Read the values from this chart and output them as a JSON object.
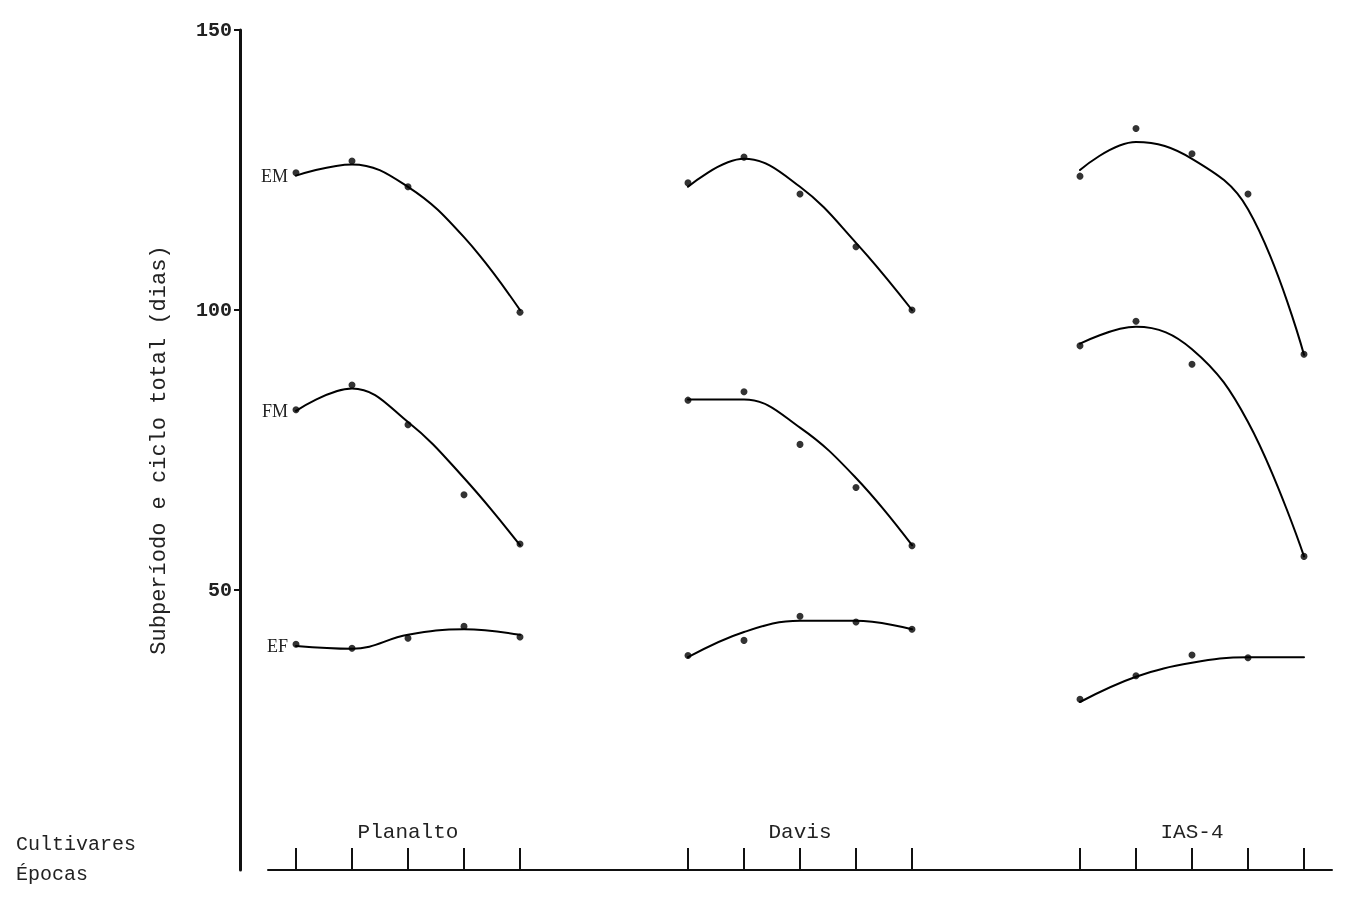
{
  "chart_data": {
    "type": "scatter",
    "ylabel": "Subperíodo e ciclo total (dias)",
    "annotations": [
      "Planalto",
      "Davis",
      "IAS-4",
      "Cultivares",
      "Épocas"
    ],
    "categories": [
      null,
      null,
      null,
      null,
      null,
      null,
      null,
      null,
      null,
      null,
      null,
      null,
      null,
      null,
      null,
      null,
      null,
      null,
      null
    ],
    "ylim": [
      0,
      150
    ],
    "yticks": [
      50,
      100,
      150
    ],
    "tick_labels": "y",
    "line_style": "solid",
    "series": [
      {
        "marker": "circle",
        "color": "#000000",
        "values": [
          124.5,
          126.6,
          122,
          null,
          99.6,
          null,
          null,
          122.7,
          127.3,
          120.7,
          111.3,
          100,
          null,
          null,
          123.9,
          132.4,
          127.9,
          120.7,
          92.1
        ]
      },
      {
        "marker": "circle",
        "color": "#000000",
        "values": [
          82.2,
          86.6,
          79.5,
          67,
          58.2,
          null,
          null,
          83.9,
          85.4,
          76,
          68.3,
          57.9,
          null,
          null,
          93.6,
          98,
          90.3,
          null,
          56
        ]
      },
      {
        "marker": "circle",
        "color": "#000000",
        "values": [
          40.3,
          39.6,
          41.4,
          43.5,
          41.6,
          null,
          null,
          38.3,
          41,
          45.3,
          44.3,
          43,
          null,
          null,
          30.5,
          34.7,
          38.4,
          37.9,
          null
        ]
      },
      {
        "type": "line",
        "name": "EM",
        "marker": "none",
        "color": "#000000",
        "values": [
          124,
          126,
          122,
          113,
          100,
          null,
          null,
          122,
          127,
          122,
          112,
          100,
          null,
          null,
          125,
          130,
          127,
          118,
          92
        ]
      },
      {
        "type": "line",
        "name": "FM",
        "marker": "none",
        "color": "#000000",
        "values": [
          82,
          86,
          80,
          70,
          58,
          null,
          null,
          84,
          84,
          79,
          70,
          58,
          null,
          null,
          94,
          97,
          93,
          80,
          56
        ]
      },
      {
        "type": "line",
        "name": "EF",
        "marker": "none",
        "color": "#000000",
        "values": [
          40,
          39.5,
          42,
          43,
          42,
          null,
          null,
          38,
          42.5,
          44.5,
          44.5,
          43,
          null,
          null,
          30,
          34.5,
          37,
          38,
          38
        ]
      }
    ]
  }
}
